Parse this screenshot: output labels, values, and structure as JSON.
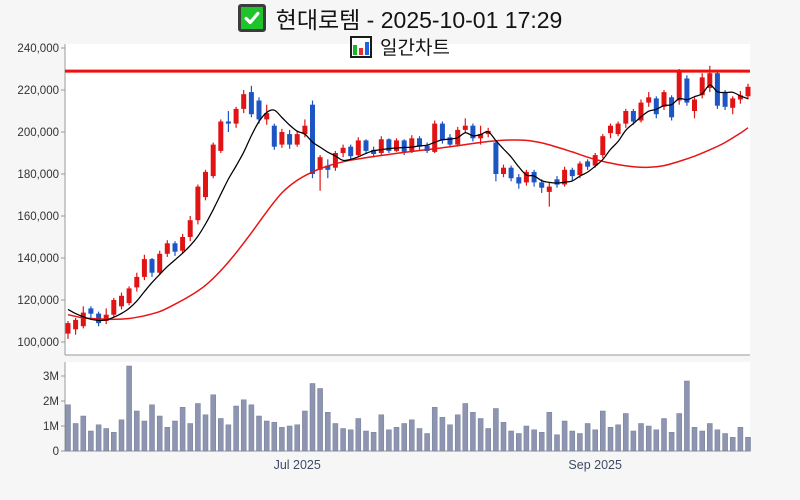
{
  "header": {
    "title": "현대로템 - 2025-10-01 17:29",
    "subtitle": "일간차트",
    "checkbox_icon_color": "#1fc32c",
    "icon_bar_colors": [
      "#1db32c",
      "#e03030",
      "#1c64e0"
    ]
  },
  "colors": {
    "up": "#e01414",
    "down": "#1d55c4",
    "ma_fast": "#000000",
    "ma_slow": "#e81414",
    "resistance": "#ee0f0f",
    "volume_fill": "#8d95b0",
    "volume_stroke": "#737d99",
    "axis": "#999999",
    "label": "#333333",
    "xlabel": "#3d4c66",
    "panel_bg": "#ffffff",
    "page_bg": "#f6f6f7"
  },
  "chart_data": {
    "type": "candlestick",
    "title": "현대로템 일간차트",
    "legend_position": "none",
    "grid": false,
    "resistance_level": 229000,
    "y_axis": {
      "labels": [
        "240,000",
        "220,000",
        "200,000",
        "180,000",
        "160,000",
        "140,000",
        "120,000",
        "100,000"
      ],
      "values": [
        240000,
        220000,
        200000,
        180000,
        160000,
        140000,
        120000,
        100000
      ],
      "ylim": [
        93800,
        241900
      ]
    },
    "volume_axis": {
      "labels": [
        "3M",
        "2M",
        "1M",
        "0"
      ],
      "values": [
        3,
        2,
        1,
        0
      ],
      "unit": "M",
      "vlim": [
        0,
        3.56
      ]
    },
    "x_ticks": [
      {
        "label": "Jul 2025",
        "day": 30
      },
      {
        "label": "Sep 2025",
        "day": 69
      }
    ],
    "ohlc": [
      [
        104000,
        110000,
        101500,
        109000
      ],
      [
        106000,
        111500,
        103500,
        110500
      ],
      [
        107500,
        117000,
        106500,
        114000
      ],
      [
        116000,
        117000,
        111000,
        113500
      ],
      [
        113500,
        114500,
        107500,
        109000
      ],
      [
        110000,
        116000,
        108500,
        113000
      ],
      [
        113000,
        121000,
        112000,
        120000
      ],
      [
        117000,
        123500,
        115500,
        122000
      ],
      [
        118500,
        126500,
        117500,
        125500
      ],
      [
        126000,
        133000,
        124000,
        131000
      ],
      [
        131000,
        141500,
        129500,
        139500
      ],
      [
        139500,
        140000,
        131000,
        133000
      ],
      [
        133000,
        143500,
        132000,
        142000
      ],
      [
        142000,
        148500,
        140500,
        147000
      ],
      [
        147000,
        148000,
        141000,
        143000
      ],
      [
        143500,
        151500,
        142000,
        150000
      ],
      [
        150000,
        160000,
        148000,
        158000
      ],
      [
        158000,
        175000,
        156000,
        174000
      ],
      [
        169000,
        182000,
        167500,
        181000
      ],
      [
        179000,
        195000,
        178000,
        194000
      ],
      [
        191000,
        206000,
        190000,
        205000
      ],
      [
        205000,
        210000,
        200000,
        204000
      ],
      [
        204000,
        212000,
        202000,
        211000
      ],
      [
        211000,
        220000,
        209000,
        218000
      ],
      [
        219000,
        222000,
        207000,
        208500
      ],
      [
        215000,
        216500,
        204000,
        206000
      ],
      [
        206000,
        213000,
        203500,
        209000
      ],
      [
        203000,
        204000,
        191500,
        193000
      ],
      [
        194000,
        201500,
        192500,
        200000
      ],
      [
        199000,
        201000,
        192000,
        194000
      ],
      [
        194000,
        200500,
        193000,
        199000
      ],
      [
        199000,
        206000,
        197500,
        203000
      ],
      [
        213000,
        215000,
        178000,
        180000
      ],
      [
        182000,
        189000,
        172000,
        188000
      ],
      [
        184000,
        187000,
        178000,
        182000
      ],
      [
        183000,
        191000,
        181500,
        190000
      ],
      [
        190000,
        194000,
        188000,
        192500
      ],
      [
        193000,
        194000,
        187000,
        188500
      ],
      [
        189000,
        197500,
        188000,
        196000
      ],
      [
        196000,
        196500,
        189500,
        191000
      ],
      [
        191500,
        193000,
        188000,
        189500
      ],
      [
        190000,
        198000,
        189000,
        196500
      ],
      [
        196500,
        197000,
        190000,
        191000
      ],
      [
        191000,
        197000,
        190500,
        196000
      ],
      [
        196000,
        196500,
        189000,
        190500
      ],
      [
        191000,
        198500,
        190000,
        197000
      ],
      [
        197000,
        198000,
        191500,
        193000
      ],
      [
        193500,
        195000,
        190000,
        191000
      ],
      [
        190500,
        205500,
        190000,
        204000
      ],
      [
        204000,
        205000,
        194500,
        196000
      ],
      [
        197500,
        199000,
        193000,
        194000
      ],
      [
        194000,
        202500,
        193000,
        201000
      ],
      [
        201000,
        206500,
        199500,
        203000
      ],
      [
        203000,
        204000,
        195500,
        197000
      ],
      [
        197000,
        203000,
        194000,
        199000
      ],
      [
        199000,
        202000,
        197500,
        200500
      ],
      [
        195000,
        196000,
        176500,
        180000
      ],
      [
        180000,
        184500,
        178500,
        183000
      ],
      [
        183000,
        184000,
        176500,
        178000
      ],
      [
        178500,
        180000,
        173000,
        175500
      ],
      [
        176000,
        182000,
        174500,
        181000
      ],
      [
        181000,
        182000,
        174000,
        176000
      ],
      [
        176000,
        177500,
        171000,
        173500
      ],
      [
        171500,
        176000,
        164500,
        174000
      ],
      [
        177500,
        179000,
        173500,
        175000
      ],
      [
        175000,
        183500,
        174000,
        182000
      ],
      [
        182000,
        183000,
        177000,
        179000
      ],
      [
        179500,
        186000,
        178000,
        185000
      ],
      [
        186000,
        187000,
        182000,
        183500
      ],
      [
        184000,
        190000,
        183000,
        189000
      ],
      [
        189000,
        199000,
        187500,
        198000
      ],
      [
        199500,
        204000,
        197000,
        203000
      ],
      [
        199000,
        205000,
        198000,
        204000
      ],
      [
        204000,
        211000,
        202000,
        210000
      ],
      [
        210000,
        211000,
        203500,
        205000
      ],
      [
        205500,
        215500,
        204500,
        214000
      ],
      [
        214000,
        219000,
        212000,
        216500
      ],
      [
        216000,
        217000,
        206500,
        208500
      ],
      [
        212000,
        220000,
        210500,
        219000
      ],
      [
        216500,
        217500,
        205500,
        207000
      ],
      [
        215000,
        230000,
        213000,
        228500
      ],
      [
        225500,
        227000,
        212500,
        214000
      ],
      [
        210000,
        216500,
        206500,
        215500
      ],
      [
        217500,
        228000,
        216000,
        226000
      ],
      [
        221000,
        231500,
        219000,
        228000
      ],
      [
        228000,
        229000,
        211000,
        212500
      ],
      [
        219000,
        220000,
        210500,
        212000
      ],
      [
        211500,
        217000,
        208500,
        216000
      ],
      [
        215500,
        219500,
        213500,
        217500
      ],
      [
        217000,
        223000,
        215500,
        221500
      ]
    ],
    "volume_millions": [
      1.85,
      1.1,
      1.4,
      0.8,
      1.05,
      0.9,
      0.75,
      1.25,
      3.4,
      1.6,
      1.2,
      1.85,
      1.4,
      0.95,
      1.2,
      1.75,
      1.1,
      1.9,
      1.45,
      2.25,
      1.3,
      1.05,
      1.8,
      2.05,
      1.85,
      1.4,
      1.2,
      1.15,
      0.95,
      1.0,
      1.05,
      1.6,
      2.7,
      2.5,
      1.55,
      1.1,
      0.9,
      0.85,
      1.3,
      0.8,
      0.75,
      1.45,
      0.85,
      0.95,
      1.1,
      1.25,
      0.9,
      0.7,
      1.75,
      1.35,
      1.05,
      1.45,
      1.9,
      1.55,
      1.3,
      0.9,
      1.7,
      1.15,
      0.8,
      0.7,
      1.0,
      0.85,
      0.75,
      1.55,
      0.65,
      1.2,
      0.8,
      0.7,
      1.1,
      0.85,
      1.6,
      0.95,
      1.05,
      1.5,
      0.8,
      1.1,
      1.0,
      0.85,
      1.3,
      0.75,
      1.5,
      2.8,
      0.95,
      0.8,
      1.1,
      0.85,
      0.7,
      0.55,
      0.95,
      0.55
    ],
    "ma_fast_points": [
      [
        0,
        115500
      ],
      [
        1,
        113500
      ],
      [
        2,
        112000
      ],
      [
        3,
        110800
      ],
      [
        4,
        110300
      ],
      [
        5,
        110500
      ],
      [
        6,
        111800
      ],
      [
        7,
        113600
      ],
      [
        8,
        116000
      ],
      [
        9,
        119500
      ],
      [
        10,
        124000
      ],
      [
        11,
        128300
      ],
      [
        12,
        132200
      ],
      [
        13,
        135900
      ],
      [
        14,
        139100
      ],
      [
        15,
        142300
      ],
      [
        16,
        145900
      ],
      [
        17,
        150400
      ],
      [
        18,
        156200
      ],
      [
        19,
        163000
      ],
      [
        20,
        170400
      ],
      [
        21,
        177600
      ],
      [
        22,
        183800
      ],
      [
        23,
        190400
      ],
      [
        24,
        198300
      ],
      [
        25,
        205000
      ],
      [
        26,
        209300
      ],
      [
        27,
        210400
      ],
      [
        28,
        206900
      ],
      [
        29,
        203300
      ],
      [
        30,
        200400
      ],
      [
        31,
        199000
      ],
      [
        32,
        195200
      ],
      [
        33,
        192800
      ],
      [
        34,
        190400
      ],
      [
        35,
        188600
      ],
      [
        36,
        186500
      ],
      [
        37,
        187000
      ],
      [
        38,
        188200
      ],
      [
        39,
        189800
      ],
      [
        40,
        191100
      ],
      [
        41,
        191600
      ],
      [
        42,
        192100
      ],
      [
        43,
        192400
      ],
      [
        44,
        192600
      ],
      [
        45,
        192800
      ],
      [
        46,
        193400
      ],
      [
        47,
        193700
      ],
      [
        48,
        195100
      ],
      [
        49,
        196300
      ],
      [
        50,
        196600
      ],
      [
        51,
        197300
      ],
      [
        52,
        199600
      ],
      [
        53,
        198200
      ],
      [
        54,
        198800
      ],
      [
        55,
        200100
      ],
      [
        56,
        195900
      ],
      [
        57,
        191900
      ],
      [
        58,
        188100
      ],
      [
        59,
        183400
      ],
      [
        60,
        179500
      ],
      [
        61,
        179100
      ],
      [
        62,
        176800
      ],
      [
        63,
        176000
      ],
      [
        64,
        175700
      ],
      [
        65,
        176100
      ],
      [
        66,
        176700
      ],
      [
        67,
        179000
      ],
      [
        68,
        180900
      ],
      [
        69,
        183700
      ],
      [
        70,
        186900
      ],
      [
        71,
        191700
      ],
      [
        72,
        195500
      ],
      [
        73,
        200800
      ],
      [
        74,
        204000
      ],
      [
        75,
        207200
      ],
      [
        76,
        209900
      ],
      [
        77,
        210800
      ],
      [
        78,
        212600
      ],
      [
        79,
        213000
      ],
      [
        80,
        215900
      ],
      [
        81,
        215400
      ],
      [
        82,
        216800
      ],
      [
        83,
        218200
      ],
      [
        84,
        222400
      ],
      [
        85,
        219200
      ],
      [
        86,
        218800
      ],
      [
        87,
        218900
      ],
      [
        88,
        217200
      ],
      [
        89,
        215900
      ]
    ],
    "ma_slow_points": [
      [
        0,
        113000
      ],
      [
        2,
        111500
      ],
      [
        4,
        111000
      ],
      [
        6,
        110800
      ],
      [
        8,
        111200
      ],
      [
        10,
        112500
      ],
      [
        12,
        114500
      ],
      [
        14,
        118000
      ],
      [
        16,
        122000
      ],
      [
        18,
        127000
      ],
      [
        20,
        134000
      ],
      [
        22,
        142500
      ],
      [
        24,
        152000
      ],
      [
        26,
        162000
      ],
      [
        28,
        171000
      ],
      [
        30,
        177000
      ],
      [
        32,
        181000
      ],
      [
        34,
        183800
      ],
      [
        36,
        185800
      ],
      [
        38,
        187200
      ],
      [
        40,
        188300
      ],
      [
        42,
        189300
      ],
      [
        44,
        190300
      ],
      [
        46,
        191200
      ],
      [
        48,
        192000
      ],
      [
        50,
        193000
      ],
      [
        52,
        194000
      ],
      [
        54,
        195000
      ],
      [
        56,
        195800
      ],
      [
        58,
        196200
      ],
      [
        60,
        196000
      ],
      [
        62,
        194800
      ],
      [
        64,
        192800
      ],
      [
        66,
        190500
      ],
      [
        68,
        188000
      ],
      [
        70,
        186000
      ],
      [
        72,
        184500
      ],
      [
        74,
        183500
      ],
      [
        76,
        183200
      ],
      [
        78,
        184000
      ],
      [
        80,
        186000
      ],
      [
        82,
        188500
      ],
      [
        84,
        191500
      ],
      [
        86,
        195000
      ],
      [
        88,
        199500
      ],
      [
        89,
        202000
      ]
    ]
  }
}
